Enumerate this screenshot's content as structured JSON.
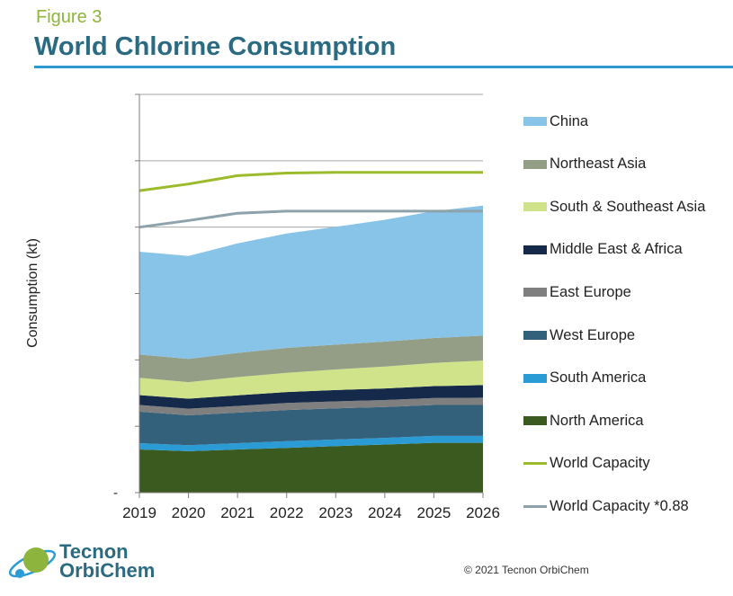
{
  "header": {
    "figure_label": "Figure 3",
    "title": "World Chlorine Consumption"
  },
  "chart_data": {
    "type": "area",
    "stacked": true,
    "ylabel": "Consumption (kt)",
    "xlabel": "",
    "x": [
      "2019",
      "2020",
      "2021",
      "2022",
      "2023",
      "2024",
      "2025",
      "2026"
    ],
    "ylim": [
      0,
      120000
    ],
    "ytick_labels": [
      "-"
    ],
    "grid": true,
    "legend_position": "right",
    "series": [
      {
        "name": "North America",
        "color": "#3b5a1f",
        "values": [
          13000,
          12500,
          13000,
          13500,
          14000,
          14500,
          15000,
          15000
        ]
      },
      {
        "name": "South America",
        "color": "#2a9bd4",
        "values": [
          1900,
          1800,
          1900,
          2000,
          2000,
          2000,
          2100,
          2100
        ]
      },
      {
        "name": "West Europe",
        "color": "#33607a",
        "values": [
          9500,
          9000,
          9200,
          9400,
          9400,
          9300,
          9300,
          9300
        ]
      },
      {
        "name": "East Europe",
        "color": "#7f7f7f",
        "values": [
          2000,
          2000,
          2000,
          2100,
          2100,
          2100,
          2100,
          2200
        ]
      },
      {
        "name": "Middle East & Africa",
        "color": "#15294a",
        "values": [
          3000,
          3000,
          3200,
          3300,
          3400,
          3500,
          3600,
          3800
        ]
      },
      {
        "name": "South & Southeast Asia",
        "color": "#d1e38a",
        "values": [
          5200,
          5000,
          5500,
          5800,
          6200,
          6600,
          7000,
          7400
        ]
      },
      {
        "name": "Northeast Asia",
        "color": "#949e86",
        "values": [
          7000,
          7000,
          7300,
          7500,
          7500,
          7500,
          7500,
          7500
        ]
      },
      {
        "name": "China",
        "color": "#88c3e8",
        "values": [
          31000,
          31000,
          33000,
          34500,
          35500,
          36700,
          38200,
          39200
        ]
      },
      {
        "name": "World Capacity",
        "type": "line",
        "color": "#9bbb2c",
        "values": [
          91000,
          93000,
          95500,
          96300,
          96500,
          96500,
          96500,
          96500
        ]
      },
      {
        "name": "World Capacity *0.88",
        "type": "line",
        "color": "#8ea2ac",
        "values": [
          80000,
          82000,
          84200,
          84800,
          84800,
          84800,
          84800,
          84800
        ]
      }
    ]
  },
  "footer": {
    "logo_line1": "Tecnon",
    "logo_line2": "OrbiChem",
    "copyright": "© 2021 Tecnon OrbiChem"
  }
}
